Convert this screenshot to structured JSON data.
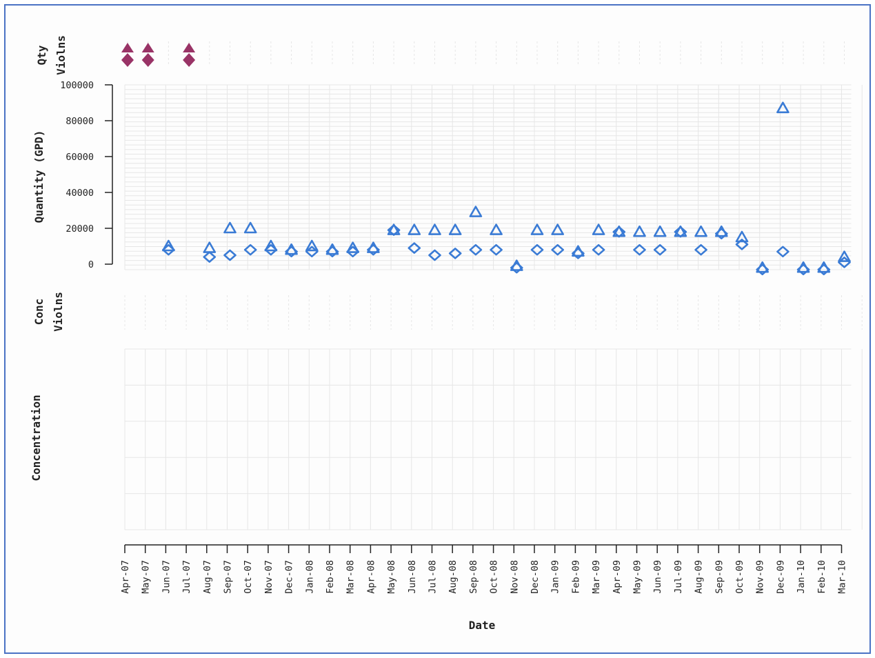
{
  "chart_data": {
    "type": "scatter",
    "panels": {
      "qty_violations": {
        "ylabel": "Qty\nViolns",
        "color": "#993366",
        "months": [
          "Apr-07",
          "May-07",
          "Jul-07"
        ]
      },
      "quantity": {
        "ylabel": "Quantity (GPD)",
        "ylim": [
          0,
          100000
        ],
        "yticks": [
          "100000",
          "80000",
          "60000",
          "40000",
          "20000",
          "0"
        ],
        "ytick_values": [
          100000,
          80000,
          60000,
          40000,
          20000,
          0
        ],
        "color": "#3a7bd5",
        "series": [
          {
            "marker": "triangle",
            "values": [
              null,
              null,
              10000,
              null,
              9000,
              20000,
              20000,
              10000,
              8000,
              10000,
              8000,
              9000,
              9000,
              19000,
              19000,
              19000,
              19000,
              29000,
              19000,
              -1000,
              19000,
              19000,
              7000,
              19000,
              18000,
              18000,
              18000,
              18000,
              18000,
              18000,
              15000,
              -2000,
              87000,
              -2000,
              -2000,
              4000
            ]
          },
          {
            "marker": "diamond",
            "values": [
              null,
              null,
              8000,
              null,
              4000,
              5000,
              8000,
              8000,
              7000,
              7000,
              7000,
              7000,
              8000,
              19000,
              9000,
              5000,
              6000,
              8000,
              8000,
              -2000,
              8000,
              8000,
              6000,
              8000,
              18000,
              8000,
              8000,
              18000,
              8000,
              17000,
              11000,
              -3000,
              7000,
              -3000,
              -3000,
              1000
            ]
          }
        ]
      },
      "conc_violations": {
        "ylabel": "Conc\nViolns"
      },
      "concentration": {
        "ylabel": "Concentration"
      }
    },
    "categories": [
      "Apr-07",
      "May-07",
      "Jun-07",
      "Jul-07",
      "Aug-07",
      "Sep-07",
      "Oct-07",
      "Nov-07",
      "Dec-07",
      "Jan-08",
      "Feb-08",
      "Mar-08",
      "Apr-08",
      "May-08",
      "Jun-08",
      "Jul-08",
      "Aug-08",
      "Sep-08",
      "Oct-08",
      "Nov-08",
      "Dec-08",
      "Jan-09",
      "Feb-09",
      "Mar-09",
      "Apr-09",
      "May-09",
      "Jun-09",
      "Jul-09",
      "Aug-09",
      "Sep-09",
      "Oct-09",
      "Nov-09",
      "Dec-09",
      "Jan-10",
      "Feb-10",
      "Mar-10"
    ],
    "xlabel": "Date",
    "grid": true
  }
}
